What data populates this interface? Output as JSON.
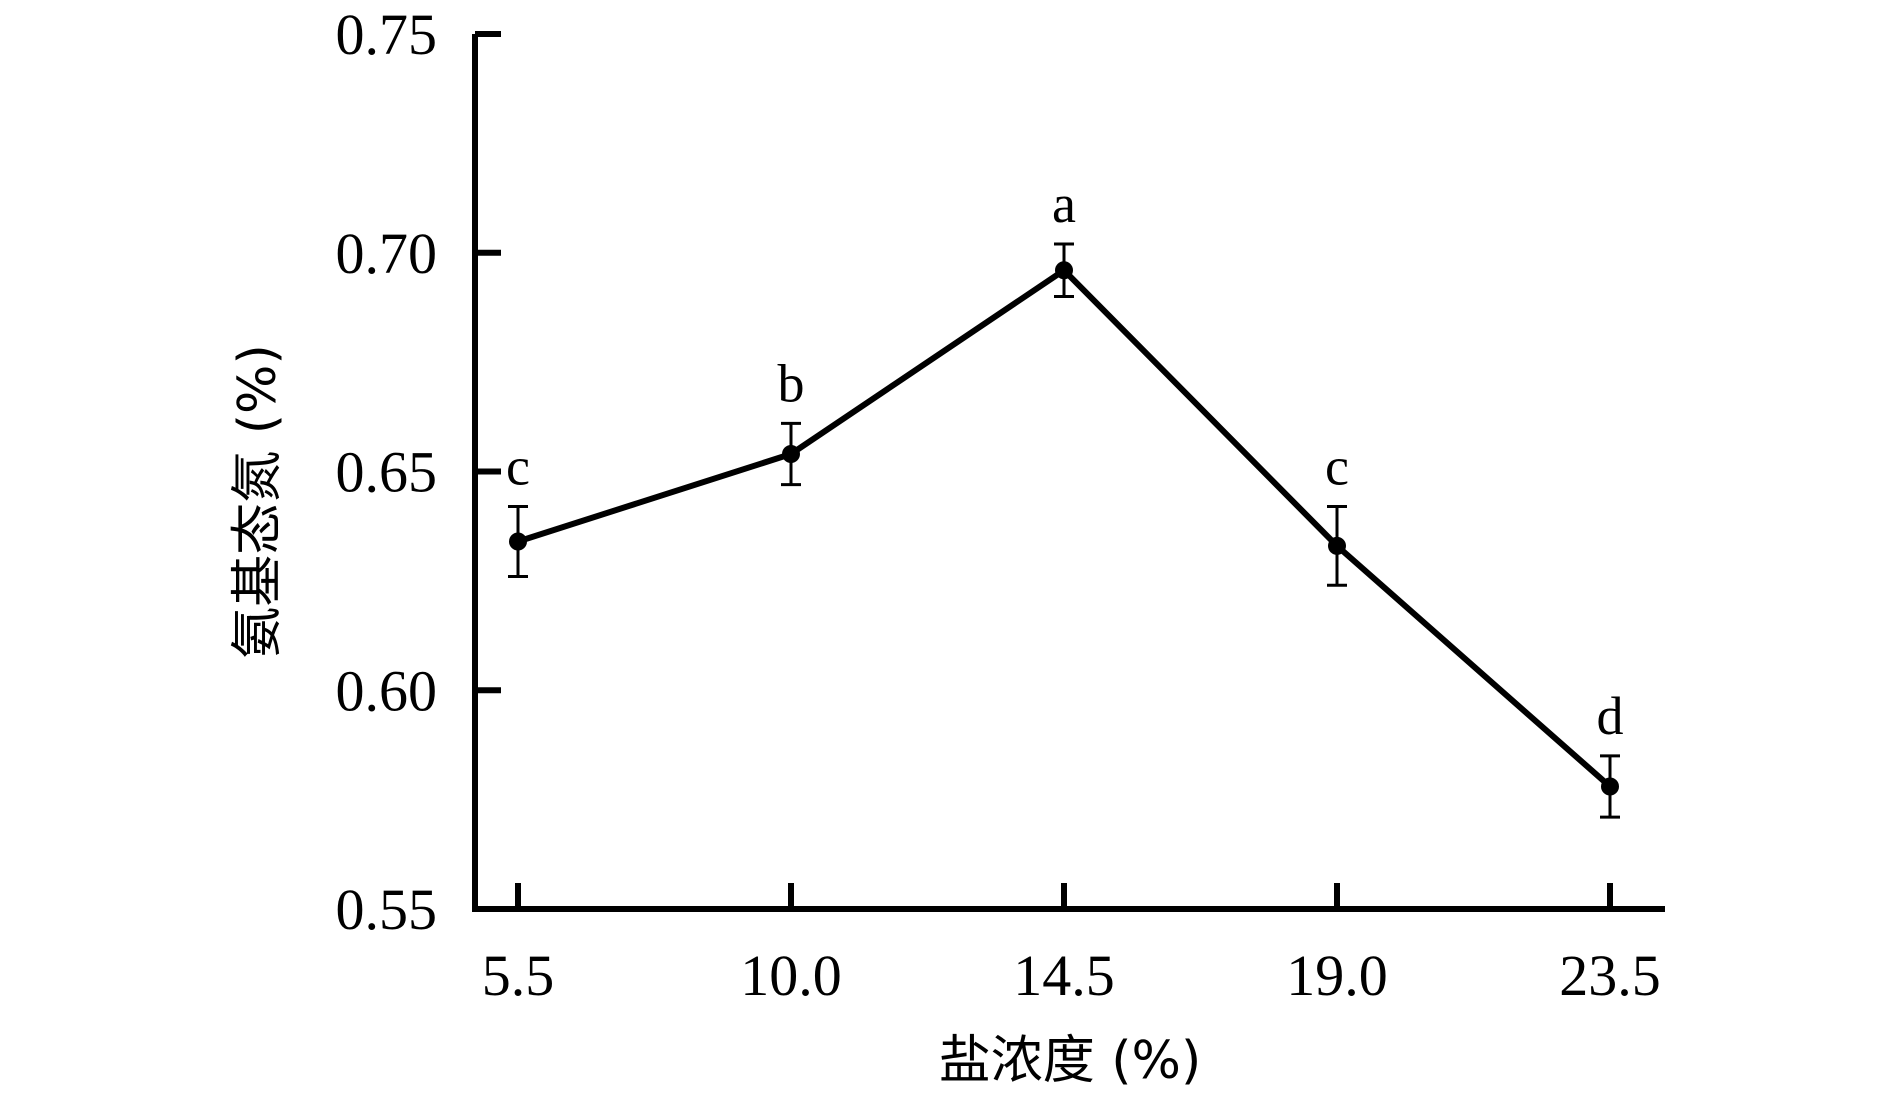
{
  "chart_data": {
    "type": "line",
    "xlabel": "盐浓度 (%)",
    "ylabel": "氨基态氮 (%)",
    "categories": [
      "5.5",
      "10.0",
      "14.5",
      "19.0",
      "23.5"
    ],
    "y_ticks": [
      "0.55",
      "0.60",
      "0.65",
      "0.70",
      "0.75"
    ],
    "ylim": [
      0.55,
      0.75
    ],
    "series": [
      {
        "values": [
          0.634,
          0.654,
          0.696,
          0.633,
          0.578
        ],
        "errors": [
          0.008,
          0.007,
          0.006,
          0.009,
          0.007
        ],
        "significance": [
          "c",
          "b",
          "a",
          "c",
          "d"
        ]
      }
    ],
    "grid": false,
    "color": "#000000"
  }
}
